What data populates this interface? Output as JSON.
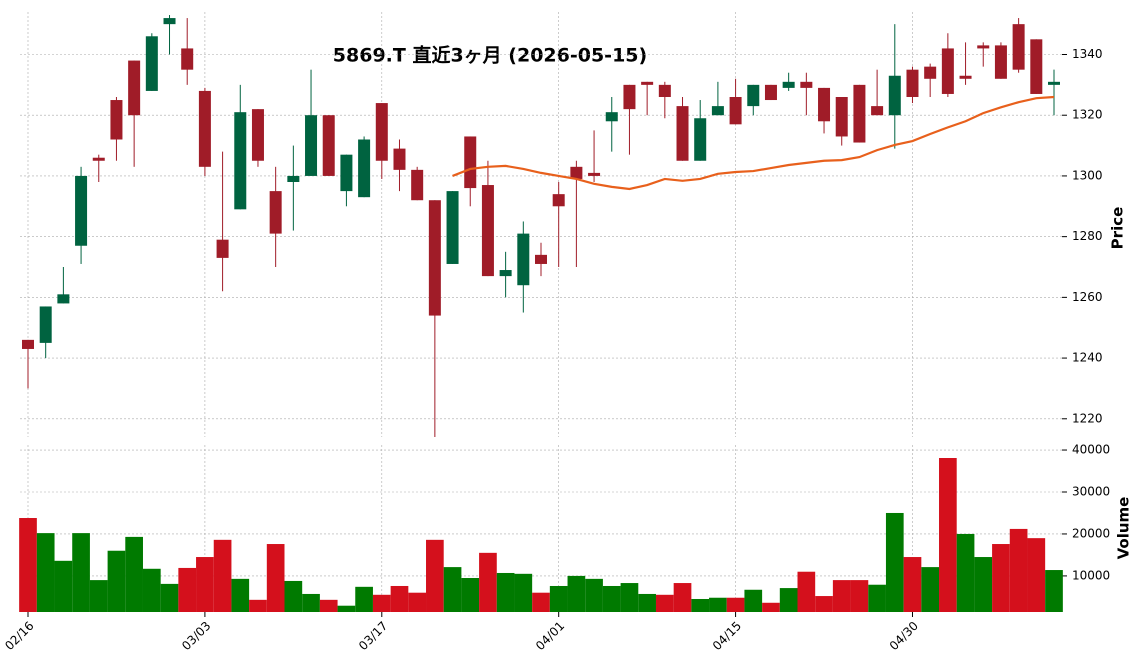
{
  "chart_data": [
    {
      "type": "candlestick",
      "title": "5869.T  直近3ヶ月  (2026-05-15)",
      "y_label": "Price",
      "categories": [
        "02/16",
        null,
        null,
        null,
        null,
        null,
        null,
        null,
        null,
        null,
        "03/03",
        null,
        null,
        null,
        null,
        null,
        null,
        null,
        null,
        null,
        "03/17",
        null,
        null,
        null,
        null,
        null,
        null,
        null,
        null,
        null,
        "04/01",
        null,
        null,
        null,
        null,
        null,
        null,
        null,
        null,
        null,
        "04/15",
        null,
        null,
        null,
        null,
        null,
        null,
        null,
        null,
        null,
        "04/30",
        null,
        null,
        null,
        null,
        null,
        null,
        null,
        null
      ],
      "open": [
        1246,
        1245,
        1258,
        1277,
        1306,
        1325,
        1338,
        1328,
        1350,
        1342,
        1328,
        1279,
        1289,
        1322,
        1295,
        1298,
        1300,
        1320,
        1295,
        1293,
        1324,
        1309,
        1302,
        1292,
        1271,
        1313,
        1297,
        1267,
        1264,
        1274,
        1294,
        1303,
        1301,
        1318,
        1330,
        1331,
        1330,
        1323,
        1305,
        1320,
        1326,
        1323,
        1330,
        1329,
        1331,
        1329,
        1326,
        1330,
        1323,
        1320,
        1335,
        1336,
        1342,
        1333,
        1343,
        1343,
        1350,
        1345,
        1330
      ],
      "high": [
        1246,
        1257,
        1270,
        1303,
        1307,
        1326,
        1338,
        1347,
        1353,
        1352,
        1329,
        1308,
        1330,
        1322,
        1303,
        1310,
        1335,
        1320,
        1307,
        1313,
        1324,
        1312,
        1303,
        1292,
        1295,
        1313,
        1305,
        1275,
        1285,
        1278,
        1298,
        1305,
        1315,
        1326,
        1330,
        1331,
        1331,
        1326,
        1325,
        1331,
        1332,
        1330,
        1330,
        1334,
        1334,
        1329,
        1326,
        1330,
        1335,
        1350,
        1336,
        1337,
        1347,
        1344,
        1344,
        1344,
        1352,
        1345,
        1335
      ],
      "low": [
        1230,
        1240,
        1258,
        1271,
        1298,
        1305,
        1303,
        1328,
        1340,
        1330,
        1300,
        1262,
        1289,
        1303,
        1270,
        1282,
        1300,
        1300,
        1290,
        1293,
        1299,
        1295,
        1292,
        1214,
        1271,
        1290,
        1267,
        1260,
        1255,
        1267,
        1270,
        1270,
        1298,
        1308,
        1307,
        1320,
        1319,
        1305,
        1305,
        1320,
        1317,
        1320,
        1325,
        1328,
        1320,
        1314,
        1310,
        1311,
        1320,
        1309,
        1324,
        1326,
        1326,
        1330,
        1336,
        1332,
        1334,
        1327,
        1320
      ],
      "close": [
        1243,
        1257,
        1261,
        1300,
        1305,
        1312,
        1320,
        1346,
        1352,
        1335,
        1303,
        1273,
        1321,
        1305,
        1281,
        1300,
        1320,
        1300,
        1307,
        1312,
        1305,
        1302,
        1292,
        1254,
        1295,
        1296,
        1267,
        1269,
        1281,
        1271,
        1290,
        1299,
        1300,
        1321,
        1322,
        1330,
        1326,
        1305,
        1319,
        1323,
        1317,
        1330,
        1325,
        1331,
        1329,
        1318,
        1313,
        1311,
        1320,
        1333,
        1326,
        1332,
        1327,
        1332,
        1342,
        1332,
        1335,
        1327,
        1331
      ],
      "up_color": "#006340",
      "down_color": "#a01c28",
      "ma": {
        "color": "#e8601c",
        "values": [
          null,
          null,
          null,
          null,
          null,
          null,
          null,
          null,
          null,
          null,
          null,
          null,
          null,
          null,
          null,
          null,
          null,
          null,
          null,
          null,
          null,
          null,
          null,
          null,
          1300,
          1302.3,
          1303,
          1303.3,
          1302.3,
          1301,
          1300,
          1299,
          1297.4,
          1296.4,
          1295.7,
          1297,
          1299,
          1298.4,
          1299,
          1300.7,
          1301.3,
          1301.6,
          1302.6,
          1303.6,
          1304.3,
          1305,
          1305.2,
          1306.2,
          1308.5,
          1310.2,
          1311.5,
          1313.8,
          1316,
          1318,
          1320.7,
          1322.6,
          1324.3,
          1325.6,
          1326
        ]
      },
      "ylim": [
        1214,
        1354
      ],
      "yticks": [
        1220,
        1240,
        1260,
        1280,
        1300,
        1320,
        1340
      ],
      "grid": true
    },
    {
      "type": "bar",
      "y_label": "Volume",
      "values": [
        23800,
        20200,
        13600,
        20200,
        9000,
        16000,
        19300,
        11700,
        8100,
        11900,
        14500,
        18600,
        9300,
        4300,
        17600,
        8800,
        5700,
        4300,
        2900,
        7400,
        5500,
        7600,
        6000,
        18600,
        12100,
        9500,
        15500,
        10700,
        10500,
        6000,
        7600,
        10000,
        9300,
        7600,
        8300,
        5700,
        5500,
        8300,
        4500,
        4800,
        4800,
        6700,
        3600,
        7100,
        11000,
        5200,
        9000,
        9000,
        7900,
        25000,
        14500,
        12100,
        38100,
        20000,
        14500,
        17600,
        21200,
        19000,
        11400
      ],
      "colors": [
        "#d4101c",
        "#007a00",
        "#007a00",
        "#007a00",
        "#007a00",
        "#007a00",
        "#007a00",
        "#007a00",
        "#007a00",
        "#d4101c",
        "#d4101c",
        "#d4101c",
        "#007a00",
        "#d4101c",
        "#d4101c",
        "#007a00",
        "#007a00",
        "#d4101c",
        "#007a00",
        "#007a00",
        "#d4101c",
        "#d4101c",
        "#d4101c",
        "#d4101c",
        "#007a00",
        "#007a00",
        "#d4101c",
        "#007a00",
        "#007a00",
        "#d4101c",
        "#007a00",
        "#007a00",
        "#007a00",
        "#007a00",
        "#007a00",
        "#007a00",
        "#d4101c",
        "#d4101c",
        "#007a00",
        "#007a00",
        "#d4101c",
        "#007a00",
        "#d4101c",
        "#007a00",
        "#d4101c",
        "#d4101c",
        "#d4101c",
        "#d4101c",
        "#007a00",
        "#007a00",
        "#d4101c",
        "#007a00",
        "#d4101c",
        "#007a00",
        "#007a00",
        "#d4101c",
        "#d4101c",
        "#d4101c",
        "#007a00"
      ],
      "ylim": [
        1400,
        41200
      ],
      "yticks": [
        10000,
        20000,
        30000,
        40000
      ],
      "grid": true
    }
  ]
}
